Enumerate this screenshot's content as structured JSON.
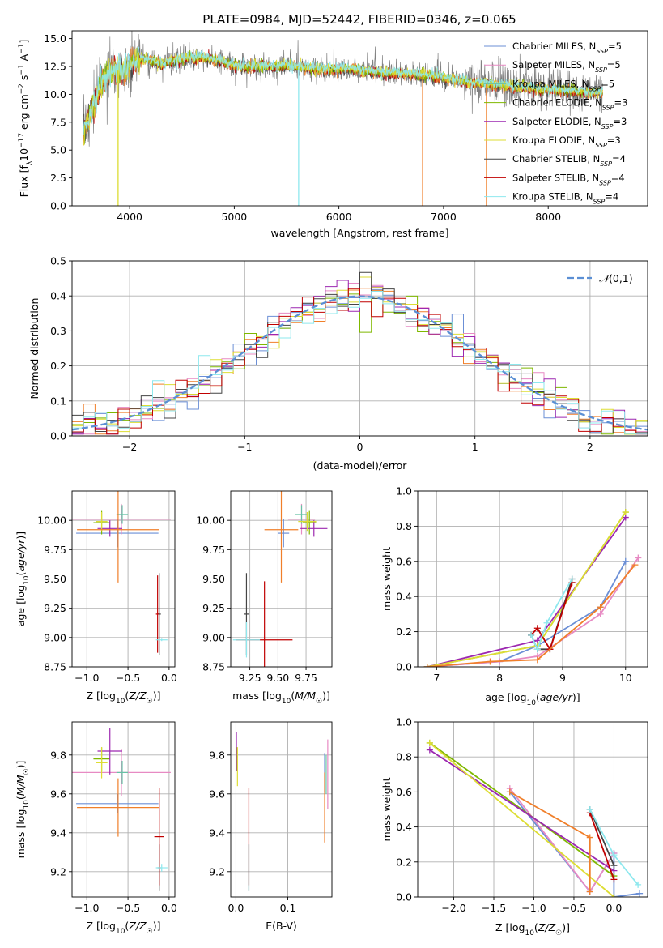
{
  "figure_title": "PLATE=0984, MJD=52442, FIBERID=0346, z=0.065",
  "colors": {
    "Chabrier MILES": "#6b8fd6",
    "Salpeter MILES": "#e78ac3",
    "Kroupa MILES": "#66c2a5",
    "Chabrier ELODIE": "#7fb800",
    "Salpeter ELODIE": "#9c27b0",
    "Kroupa ELODIE": "#dddd33",
    "Chabrier STELIB": "#444444",
    "Salpeter STELIB": "#c00000",
    "Kroupa STELIB": "#8ee8ee",
    "orange": "#f07f2a",
    "data": "#808080",
    "normal": "#5b8fd4",
    "grid": "#b0b0b0"
  },
  "chart_data": [
    {
      "id": "spectrum",
      "type": "line",
      "title": "PLATE=0984, MJD=52442, FIBERID=0346, z=0.065",
      "xlabel": "wavelength [Angstrom, rest frame]",
      "ylabel": "Flux [f_λ 10^-17 erg cm^-2 s^-1 A^-1]",
      "xlim": [
        3450,
        8950
      ],
      "ylim": [
        0,
        15.7
      ],
      "xticks": [
        4000,
        5000,
        6000,
        7000,
        8000
      ],
      "yticks": [
        0.0,
        2.5,
        5.0,
        7.5,
        10.0,
        12.5,
        15.0
      ],
      "grid": false,
      "legend_position": "upper right",
      "legend": [
        "Chabrier MILES, N_SSP=5",
        "Salpeter MILES, N_SSP=5",
        "Kroupa MILES, N_SSP=5",
        "Chabrier ELODIE, N_SSP=3",
        "Salpeter ELODIE, N_SSP=3",
        "Kroupa ELODIE, N_SSP=3",
        "Chabrier STELIB, N_SSP=4",
        "Salpeter STELIB, N_SSP=4",
        "Kroupa STELIB, N_SSP=4"
      ],
      "continuum": {
        "x": [
          3560,
          3650,
          3750,
          3850,
          3950,
          4050,
          4150,
          4300,
          4500,
          4700,
          4900,
          5100,
          5300,
          5500,
          5800,
          6100,
          6400,
          6700,
          7000,
          7300,
          7600,
          7900,
          8200,
          8500
        ],
        "y": [
          6.6,
          8.8,
          11.4,
          12.2,
          12.0,
          13.0,
          13.2,
          12.7,
          13.2,
          13.3,
          12.9,
          12.4,
          12.5,
          12.6,
          12.2,
          12.3,
          11.9,
          11.8,
          11.5,
          11.0,
          10.8,
          10.5,
          10.3,
          10.1
        ]
      },
      "dips": [
        {
          "x": 3890,
          "y": 0.0
        },
        {
          "x": 5615,
          "y": 0.0
        },
        {
          "x": 6800,
          "y": 0.0
        },
        {
          "x": 7410,
          "y": 0.0
        }
      ]
    },
    {
      "id": "residuals",
      "type": "step",
      "xlabel": "(data-model)/error",
      "ylabel": "Normed distribution",
      "xlim": [
        -2.5,
        2.5
      ],
      "ylim": [
        0,
        0.5
      ],
      "xticks": [
        -2,
        -1,
        0,
        1,
        2
      ],
      "yticks": [
        0.0,
        0.1,
        0.2,
        0.3,
        0.4,
        0.5
      ],
      "grid": true,
      "legend": [
        "N(0,1)"
      ],
      "legend_position": "upper right"
    },
    {
      "id": "age_vs_Z",
      "type": "errorbar",
      "xlabel": "Z [log10(Z/Z☉)]",
      "ylabel": "age  [log10(age/yr)]",
      "xlim": [
        -1.18,
        0.07
      ],
      "ylim": [
        8.75,
        10.25
      ],
      "xticks": [
        -1.0,
        -0.5,
        0.0
      ],
      "yticks": [
        8.75,
        9.0,
        9.25,
        9.5,
        9.75,
        10.0
      ],
      "grid": true,
      "points": [
        {
          "s": "Chabrier MILES",
          "x": -0.63,
          "xe": 0.5,
          "y": 9.89,
          "ye": 0.12
        },
        {
          "s": "Salpeter MILES",
          "x": -0.58,
          "xe": 0.6,
          "y": 10.01,
          "ye": 0.13
        },
        {
          "s": "Kroupa MILES",
          "x": -0.57,
          "xe": 0.07,
          "y": 10.05,
          "ye": 0.08
        },
        {
          "s": "Chabrier ELODIE",
          "x": -0.82,
          "xe": 0.1,
          "y": 9.98,
          "ye": 0.1
        },
        {
          "s": "Salpeter ELODIE",
          "x": -0.72,
          "xe": 0.15,
          "y": 9.93,
          "ye": 0.07
        },
        {
          "s": "Kroupa ELODIE",
          "x": -0.82,
          "xe": 0.07,
          "y": 9.99,
          "ye": 0.08
        },
        {
          "s": "Chabrier STELIB",
          "x": -0.12,
          "xe": 0.02,
          "y": 9.2,
          "ye": 0.35
        },
        {
          "s": "Salpeter STELIB",
          "x": -0.14,
          "xe": 0.02,
          "y": 9.2,
          "ye": 0.33
        },
        {
          "s": "Kroupa STELIB",
          "x": -0.09,
          "xe": 0.07,
          "y": 8.98,
          "ye": 0.01
        },
        {
          "s": "orange",
          "x": -0.62,
          "xe": 0.5,
          "y": 9.92,
          "ye": 0.45
        }
      ]
    },
    {
      "id": "age_vs_mass",
      "type": "errorbar",
      "xlabel": "mass [log10(M/M☉)]",
      "ylabel": "",
      "xlim": [
        9.08,
        9.98
      ],
      "ylim": [
        8.75,
        10.25
      ],
      "xticks": [
        9.25,
        9.5,
        9.75
      ],
      "yticks": [
        8.75,
        9.0,
        9.25,
        9.5,
        9.75,
        10.0
      ],
      "grid": true,
      "points": [
        {
          "s": "Chabrier MILES",
          "x": 9.55,
          "xe": 0.05,
          "y": 9.89,
          "ye": 0.12
        },
        {
          "s": "Salpeter MILES",
          "x": 9.71,
          "xe": 0.12,
          "y": 10.01,
          "ye": 0.13
        },
        {
          "s": "Kroupa MILES",
          "x": 9.71,
          "xe": 0.06,
          "y": 10.05,
          "ye": 0.08
        },
        {
          "s": "Chabrier ELODIE",
          "x": 9.78,
          "xe": 0.06,
          "y": 9.98,
          "ye": 0.1
        },
        {
          "s": "Salpeter ELODIE",
          "x": 9.82,
          "xe": 0.12,
          "y": 9.93,
          "ye": 0.07
        },
        {
          "s": "Kroupa ELODIE",
          "x": 9.76,
          "xe": 0.08,
          "y": 9.99,
          "ye": 0.08
        },
        {
          "s": "Chabrier STELIB",
          "x": 9.22,
          "xe": 0.02,
          "y": 9.2,
          "ye": 0.35
        },
        {
          "s": "Salpeter STELIB",
          "x": 9.38,
          "xe": 0.25,
          "y": 8.98,
          "ye": 0.5
        },
        {
          "s": "Kroupa STELIB",
          "x": 9.22,
          "xe": 0.12,
          "y": 8.98,
          "ye": 0.15
        },
        {
          "s": "orange",
          "x": 9.53,
          "xe": 0.15,
          "y": 9.92,
          "ye": 0.45
        }
      ]
    },
    {
      "id": "weight_vs_age",
      "type": "line",
      "xlabel": "age  [log10(age/yr)]",
      "ylabel": "mass weight",
      "xlim": [
        6.7,
        10.35
      ],
      "ylim": [
        0,
        1.0
      ],
      "xticks": [
        7,
        8,
        9,
        10
      ],
      "yticks": [
        0.0,
        0.2,
        0.4,
        0.6,
        0.8,
        1.0
      ],
      "grid": true,
      "series": [
        {
          "s": "Chabrier MILES",
          "x": [
            6.85,
            8.0,
            8.6,
            9.6,
            10.0
          ],
          "y": [
            0.0,
            0.03,
            0.12,
            0.34,
            0.6
          ]
        },
        {
          "s": "Salpeter MILES",
          "x": [
            6.85,
            8.0,
            8.6,
            9.6,
            10.2
          ],
          "y": [
            0.0,
            0.03,
            0.06,
            0.3,
            0.62
          ]
        },
        {
          "s": "Chabrier ELODIE",
          "x": [
            6.85,
            8.6,
            10.0
          ],
          "y": [
            0.0,
            0.12,
            0.88
          ]
        },
        {
          "s": "Salpeter ELODIE",
          "x": [
            6.85,
            8.6,
            10.0
          ],
          "y": [
            0.0,
            0.15,
            0.85
          ]
        },
        {
          "s": "Kroupa ELODIE",
          "x": [
            6.85,
            8.6,
            10.0
          ],
          "y": [
            0.0,
            0.12,
            0.88
          ]
        },
        {
          "s": "Chabrier STELIB",
          "x": [
            8.5,
            8.6,
            8.8,
            9.15
          ],
          "y": [
            0.18,
            0.1,
            0.1,
            0.5
          ]
        },
        {
          "s": "Salpeter STELIB",
          "x": [
            8.5,
            8.6,
            8.8,
            9.15
          ],
          "y": [
            0.18,
            0.22,
            0.1,
            0.48
          ]
        },
        {
          "s": "Kroupa STELIB",
          "x": [
            8.5,
            8.6,
            8.75,
            9.15
          ],
          "y": [
            0.18,
            0.1,
            0.25,
            0.5
          ]
        },
        {
          "s": "orange",
          "x": [
            6.85,
            7.85,
            8.6,
            9.6,
            10.15
          ],
          "y": [
            0.0,
            0.03,
            0.04,
            0.34,
            0.58
          ]
        }
      ]
    },
    {
      "id": "mass_vs_Z",
      "type": "errorbar",
      "xlabel": "Z [log10(Z/Z☉)]",
      "ylabel": "mass [log10(M/M☉)]",
      "xlim": [
        -1.18,
        0.07
      ],
      "ylim": [
        9.07,
        9.97
      ],
      "xticks": [
        -1.0,
        -0.5,
        0.0
      ],
      "yticks": [
        9.2,
        9.4,
        9.6,
        9.8
      ],
      "grid": true,
      "points": [
        {
          "s": "Chabrier MILES",
          "x": -0.63,
          "xe": 0.5,
          "y": 9.55,
          "ye": 0.05
        },
        {
          "s": "Salpeter MILES",
          "x": -0.58,
          "xe": 0.6,
          "y": 9.71,
          "ye": 0.12
        },
        {
          "s": "Kroupa MILES",
          "x": -0.57,
          "xe": 0.07,
          "y": 9.71,
          "ye": 0.06
        },
        {
          "s": "Chabrier ELODIE",
          "x": -0.82,
          "xe": 0.1,
          "y": 9.78,
          "ye": 0.06
        },
        {
          "s": "Salpeter ELODIE",
          "x": -0.72,
          "xe": 0.15,
          "y": 9.82,
          "ye": 0.12
        },
        {
          "s": "Kroupa ELODIE",
          "x": -0.82,
          "xe": 0.07,
          "y": 9.76,
          "ye": 0.08
        },
        {
          "s": "Chabrier STELIB",
          "x": -0.12,
          "xe": 0.02,
          "y": 9.22,
          "ye": 0.12
        },
        {
          "s": "Salpeter STELIB",
          "x": -0.12,
          "xe": 0.06,
          "y": 9.38,
          "ye": 0.25
        },
        {
          "s": "Kroupa STELIB",
          "x": -0.09,
          "xe": 0.07,
          "y": 9.22,
          "ye": 0.02
        },
        {
          "s": "orange",
          "x": -0.62,
          "xe": 0.5,
          "y": 9.53,
          "ye": 0.15
        }
      ]
    },
    {
      "id": "mass_vs_ebv",
      "type": "errorbar",
      "xlabel": "E(B-V)",
      "ylabel": "",
      "xlim": [
        -0.01,
        0.185
      ],
      "ylim": [
        9.07,
        9.97
      ],
      "xticks": [
        0.0,
        0.1
      ],
      "yticks": [
        9.2,
        9.4,
        9.6,
        9.8
      ],
      "grid": true,
      "points": [
        {
          "s": "Chabrier MILES",
          "x": 0.171,
          "xe": 0,
          "y": 9.71,
          "ye": 0.1
        },
        {
          "s": "Salpeter MILES",
          "x": 0.177,
          "xe": 0,
          "y": 9.7,
          "ye": 0.18
        },
        {
          "s": "Kroupa MILES",
          "x": 0.174,
          "xe": 0,
          "y": 9.7,
          "ye": 0.1
        },
        {
          "s": "Chabrier ELODIE",
          "x": 0.002,
          "xe": 0,
          "y": 9.78,
          "ye": 0.06
        },
        {
          "s": "Salpeter ELODIE",
          "x": 0.001,
          "xe": 0,
          "y": 9.82,
          "ye": 0.1
        },
        {
          "s": "Kroupa ELODIE",
          "x": 0.003,
          "xe": 0,
          "y": 9.74,
          "ye": 0.1
        },
        {
          "s": "Chabrier STELIB",
          "x": 0.025,
          "xe": 0,
          "y": 9.22,
          "ye": 0.12
        },
        {
          "s": "Salpeter STELIB",
          "x": 0.025,
          "xe": 0,
          "y": 9.38,
          "ye": 0.25
        },
        {
          "s": "Kroupa STELIB",
          "x": 0.025,
          "xe": 0,
          "y": 9.22,
          "ye": 0.12
        },
        {
          "s": "orange",
          "x": 0.171,
          "xe": 0,
          "y": 9.53,
          "ye": 0.18
        }
      ]
    },
    {
      "id": "weight_vs_Z",
      "type": "line",
      "xlabel": "Z [log10(Z/Z☉)]",
      "ylabel": "mass weight",
      "xlim": [
        -2.45,
        0.42
      ],
      "ylim": [
        0,
        1.0
      ],
      "xticks": [
        -2.0,
        -1.5,
        -1.0,
        -0.5,
        0.0
      ],
      "yticks": [
        0.0,
        0.2,
        0.4,
        0.6,
        0.8,
        1.0
      ],
      "grid": true,
      "series": [
        {
          "s": "Chabrier MILES",
          "x": [
            -1.3,
            -0.3,
            0.0,
            0.0,
            0.32
          ],
          "y": [
            0.6,
            0.03,
            0.25,
            0.0,
            0.02
          ]
        },
        {
          "s": "Salpeter MILES",
          "x": [
            -1.3,
            -0.3,
            0.0
          ],
          "y": [
            0.62,
            0.03,
            0.25
          ]
        },
        {
          "s": "Chabrier ELODIE",
          "x": [
            -2.3,
            0.0
          ],
          "y": [
            0.88,
            0.12
          ]
        },
        {
          "s": "Salpeter ELODIE",
          "x": [
            -2.3,
            0.0
          ],
          "y": [
            0.84,
            0.15
          ]
        },
        {
          "s": "Kroupa ELODIE",
          "x": [
            -2.3,
            0.0
          ],
          "y": [
            0.88,
            0.0
          ]
        },
        {
          "s": "Chabrier STELIB",
          "x": [
            -0.3,
            0.0
          ],
          "y": [
            0.5,
            0.18
          ]
        },
        {
          "s": "Salpeter STELIB",
          "x": [
            -0.3,
            0.0
          ],
          "y": [
            0.48,
            0.1
          ]
        },
        {
          "s": "Kroupa STELIB",
          "x": [
            -0.3,
            0.0,
            0.3
          ],
          "y": [
            0.5,
            0.24,
            0.07
          ]
        },
        {
          "s": "orange",
          "x": [
            -1.3,
            -0.3,
            -0.3
          ],
          "y": [
            0.6,
            0.34,
            0.03
          ]
        }
      ]
    }
  ]
}
